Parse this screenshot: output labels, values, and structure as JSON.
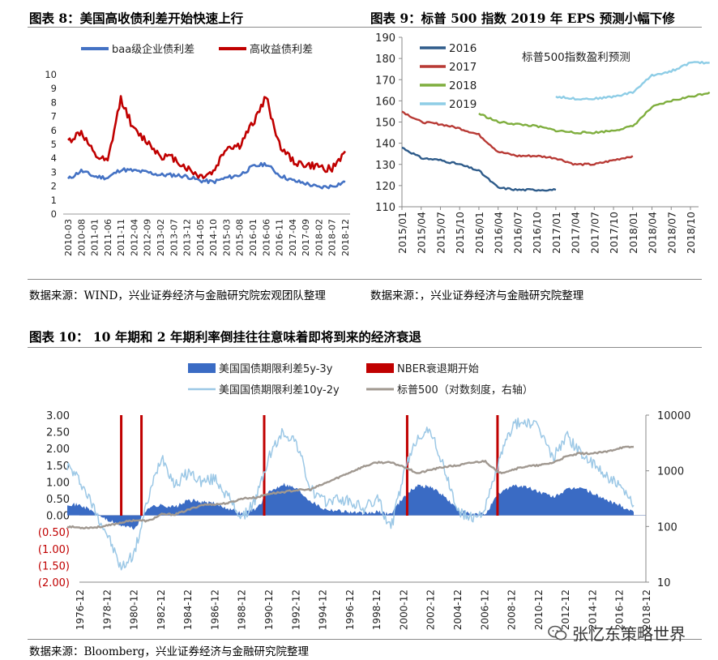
{
  "fig8": {
    "title": "图表 8：美国高收债利差开始快速上行",
    "source": "数据来源：WIND，兴业证券经济与金融研究院宏观团队整理"
  },
  "fig9": {
    "title": "图表 9：标普 500 指数 2019 年 EPS 预测小幅下修",
    "source": "数据来源：，兴业证券经济与金融研究院整理"
  },
  "fig10": {
    "title": "图表 10：  10 年期和 2 年期利率倒挂往往意味着即将到来的经济衰退",
    "source": "数据来源：Bloomberg，兴业证券经济与金融研究院整理"
  },
  "watermark": "张忆东策略世界",
  "chart_data": [
    {
      "id": "fig8",
      "type": "line",
      "title": "美国高收债利差开始快速上行",
      "x_ticks": [
        "2010-03",
        "2010-08",
        "2011-01",
        "2011-06",
        "2011-11",
        "2012-04",
        "2012-09",
        "2013-02",
        "2013-07",
        "2013-12",
        "2014-05",
        "2014-10",
        "2015-03",
        "2015-08",
        "2016-01",
        "2016-06",
        "2016-11",
        "2017-04",
        "2017-09",
        "2018-02",
        "2018-07",
        "2018-12"
      ],
      "ylim": [
        0,
        10
      ],
      "y_ticks": [
        "0",
        "1",
        "2",
        "3",
        "4",
        "5",
        "6",
        "7",
        "8",
        "9",
        "10"
      ],
      "series": [
        {
          "name": "baa级企业债利差",
          "color": "#4472C4",
          "values": [
            2.5,
            3.1,
            2.7,
            2.6,
            3.2,
            3.1,
            3.0,
            2.8,
            2.8,
            2.7,
            2.4,
            2.3,
            2.6,
            2.8,
            3.4,
            3.6,
            2.8,
            2.4,
            2.2,
            1.9,
            2.0,
            2.3
          ]
        },
        {
          "name": "高收益债利差",
          "color": "#C00000",
          "values": [
            5.2,
            5.9,
            4.2,
            3.7,
            8.3,
            6.0,
            5.2,
            4.2,
            4.0,
            3.3,
            2.7,
            3.0,
            4.8,
            4.9,
            6.5,
            8.4,
            5.0,
            3.8,
            3.5,
            3.4,
            3.2,
            4.5
          ]
        }
      ]
    },
    {
      "id": "fig9",
      "type": "line",
      "title": "标普500指数盈利预测",
      "x_ticks": [
        "2015/01",
        "2015/04",
        "2015/07",
        "2015/10",
        "2016/01",
        "2016/04",
        "2016/07",
        "2016/10",
        "2017/01",
        "2017/04",
        "2017/07",
        "2017/10",
        "2018/01",
        "2018/04",
        "2018/07",
        "2018/10"
      ],
      "ylim": [
        110,
        190
      ],
      "y_ticks": [
        "110",
        "120",
        "130",
        "140",
        "150",
        "160",
        "170",
        "180",
        "190"
      ],
      "series": [
        {
          "name": "2016",
          "color": "#2E5B8A",
          "x": [
            0,
            1,
            2,
            3,
            4,
            5,
            6,
            7,
            8
          ],
          "values": [
            138,
            133,
            132,
            130,
            127,
            119,
            118,
            118,
            118
          ]
        },
        {
          "name": "2017",
          "color": "#B83A35",
          "x": [
            0,
            1,
            2,
            3,
            4,
            5,
            6,
            7,
            8,
            9,
            10,
            11,
            12
          ],
          "values": [
            155,
            150,
            149,
            147,
            144,
            136,
            134,
            134,
            133,
            130,
            130,
            132,
            134
          ]
        },
        {
          "name": "2018",
          "color": "#7FAE3E",
          "x": [
            4,
            5,
            6,
            7,
            8,
            9,
            10,
            11,
            12,
            13,
            14,
            15,
            16
          ],
          "values": [
            154,
            150,
            149,
            148,
            146,
            145,
            145,
            146,
            148,
            157,
            160,
            162,
            164
          ]
        },
        {
          "name": "2019",
          "color": "#8ECDE6",
          "x": [
            8,
            9,
            10,
            11,
            12,
            13,
            14,
            15,
            16
          ],
          "values": [
            162,
            161,
            161,
            162,
            164,
            172,
            174,
            178,
            178
          ]
        }
      ]
    },
    {
      "id": "fig10",
      "type": "line",
      "title": "10年期和2年期利率倒挂往往意味着即将到来的经济衰退",
      "x_ticks": [
        "1976-12",
        "1978-12",
        "1980-12",
        "1982-12",
        "1984-12",
        "1986-12",
        "1988-12",
        "1990-12",
        "1992-12",
        "1994-12",
        "1996-12",
        "1998-12",
        "2000-12",
        "2002-12",
        "2004-12",
        "2006-12",
        "2008-12",
        "2010-12",
        "2012-12",
        "2014-12",
        "2016-12",
        "2018-12"
      ],
      "ylim": [
        -2.0,
        3.0
      ],
      "y_ticks_left": [
        "3.00",
        "2.50",
        "2.00",
        "1.50",
        "1.00",
        "0.50",
        "0.00",
        "(0.50)",
        "(1.00)",
        "(1.50)",
        "(2.00)"
      ],
      "y_ticks_right": [
        "10000",
        "1000",
        "100",
        "10"
      ],
      "y2lim_log": [
        10,
        10000
      ],
      "legend": [
        "美国国债期限利差5y-3y",
        "NBER衰退期开始",
        "美国国债期限利差10y-2y",
        "标普500（对数刻度，右轴）"
      ],
      "recession_starts": [
        1980.0,
        1981.5,
        1990.6,
        2001.2,
        2007.9
      ],
      "series": [
        {
          "name": "美国国债期限利差5y-3y",
          "kind": "area",
          "color": "#3A6BC4",
          "x": [
            1976,
            1977,
            1978,
            1979,
            1980,
            1981,
            1982,
            1983,
            1984,
            1985,
            1986,
            1987,
            1988,
            1989,
            1990,
            1991,
            1992,
            1993,
            1994,
            1995,
            1996,
            1997,
            1998,
            1999,
            2000,
            2001,
            2002,
            2003,
            2004,
            2005,
            2006,
            2007,
            2008,
            2009,
            2010,
            2011,
            2012,
            2013,
            2014,
            2015,
            2016,
            2017,
            2018
          ],
          "values": [
            0.35,
            0.3,
            0.1,
            -0.15,
            -0.3,
            -0.4,
            0.25,
            0.3,
            0.25,
            0.45,
            0.4,
            0.35,
            0.2,
            0.05,
            0.2,
            0.7,
            0.95,
            0.8,
            0.45,
            0.2,
            0.15,
            0.1,
            0.05,
            0.1,
            0.05,
            0.6,
            0.9,
            0.85,
            0.55,
            0.15,
            0.02,
            0.05,
            0.65,
            0.9,
            0.85,
            0.7,
            0.55,
            0.75,
            0.85,
            0.65,
            0.45,
            0.3,
            0.1
          ]
        },
        {
          "name": "美国国债期限利差10y-2y",
          "kind": "line",
          "color": "#9CC8E6",
          "x": [
            1976,
            1977,
            1978,
            1979,
            1980,
            1981,
            1982,
            1983,
            1984,
            1985,
            1986,
            1987,
            1988,
            1989,
            1990,
            1991,
            1992,
            1993,
            1994,
            1995,
            1996,
            1997,
            1998,
            1999,
            2000,
            2001,
            2002,
            2003,
            2004,
            2005,
            2006,
            2007,
            2008,
            2009,
            2010,
            2011,
            2012,
            2013,
            2014,
            2015,
            2016,
            2017,
            2018
          ],
          "values": [
            1.5,
            1.0,
            0.2,
            -0.6,
            -1.6,
            -1.1,
            0.5,
            1.8,
            0.9,
            1.3,
            1.0,
            1.1,
            0.5,
            -0.1,
            0.5,
            1.8,
            2.5,
            2.2,
            0.8,
            0.4,
            0.5,
            0.4,
            0.2,
            0.5,
            -0.4,
            1.3,
            2.4,
            2.5,
            1.3,
            0.1,
            -0.1,
            0.2,
            1.6,
            2.7,
            2.8,
            2.6,
            1.7,
            2.4,
            1.9,
            1.5,
            1.2,
            0.8,
            0.3
          ]
        },
        {
          "name": "标普500（对数刻度，右轴）",
          "kind": "line",
          "axis": "right",
          "color": "#A09890",
          "x": [
            1976,
            1977,
            1978,
            1979,
            1980,
            1981,
            1982,
            1983,
            1984,
            1985,
            1986,
            1987,
            1988,
            1989,
            1990,
            1991,
            1992,
            1993,
            1994,
            1995,
            1996,
            1997,
            1998,
            1999,
            2000,
            2001,
            2002,
            2003,
            2004,
            2005,
            2006,
            2007,
            2008,
            2009,
            2010,
            2011,
            2012,
            2013,
            2014,
            2015,
            2016,
            2017,
            2018
          ],
          "values": [
            100,
            95,
            96,
            103,
            118,
            130,
            125,
            165,
            165,
            200,
            245,
            250,
            265,
            320,
            330,
            390,
            415,
            450,
            460,
            580,
            740,
            950,
            1200,
            1420,
            1400,
            1180,
            900,
            1050,
            1180,
            1250,
            1400,
            1500,
            900,
            1050,
            1200,
            1250,
            1400,
            1800,
            2050,
            2050,
            2200,
            2600,
            2700
          ]
        }
      ]
    }
  ]
}
